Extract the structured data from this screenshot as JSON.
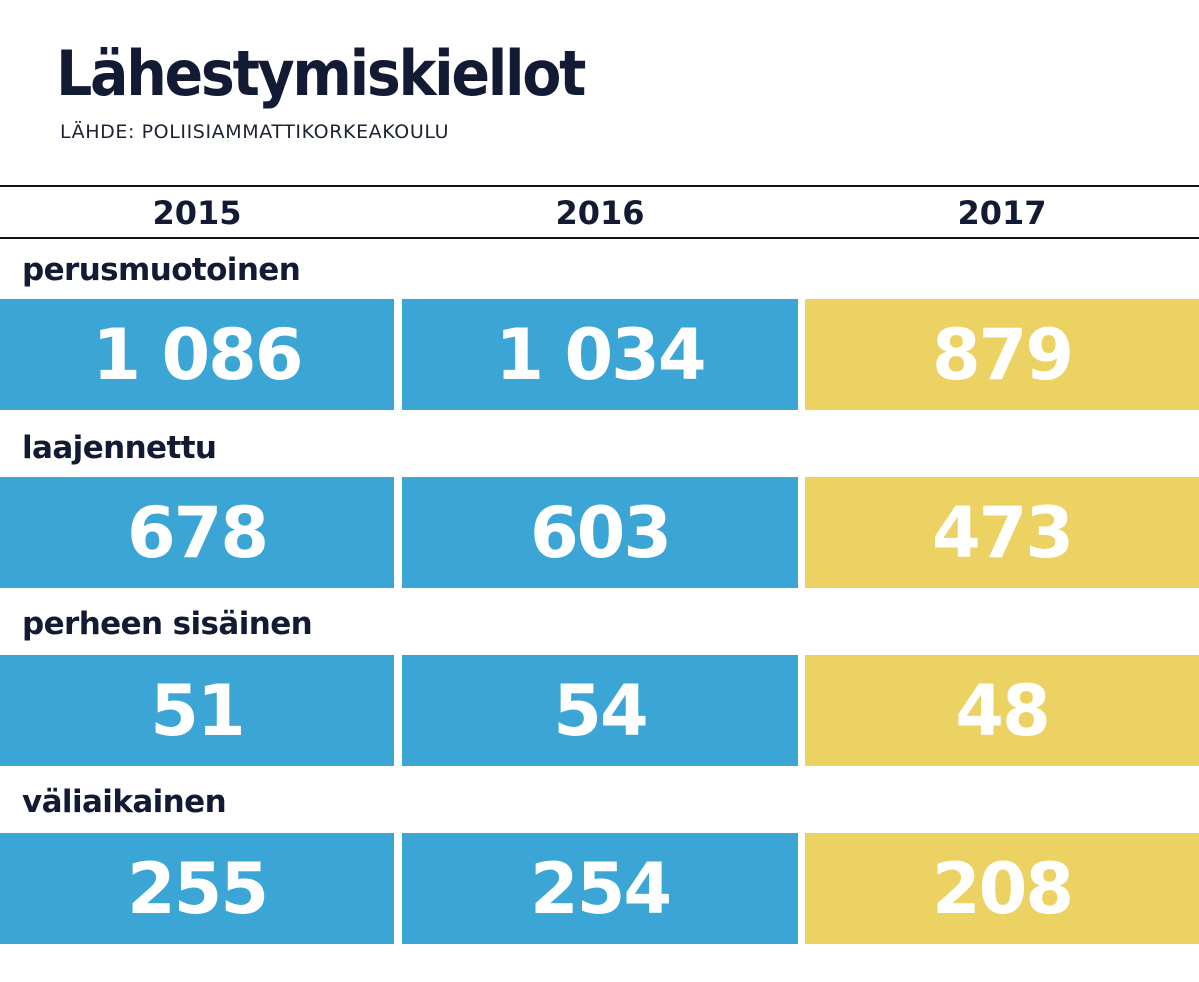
{
  "title": "Lähestymiskiellot",
  "source": "LÄHDE: POLIISIAMMATTIKORKEAKOULU",
  "colors": {
    "text": "#131a33",
    "past_years": "#3ba6d6",
    "latest_year": "#ecd263",
    "value_text": "#ffffff"
  },
  "chart_data": {
    "type": "table",
    "title": "Lähestymiskiellot",
    "source": "LÄHDE: POLIISIAMMATTIKORKEAKOULU",
    "columns": [
      "2015",
      "2016",
      "2017"
    ],
    "rows": [
      {
        "label": "perusmuotoinen",
        "values": [
          1086,
          1034,
          879
        ],
        "display": [
          "1 086",
          "1 034",
          "879"
        ]
      },
      {
        "label": "laajennettu",
        "values": [
          678,
          603,
          473
        ],
        "display": [
          "678",
          "603",
          "473"
        ]
      },
      {
        "label": "perheen sisäinen",
        "values": [
          51,
          54,
          48
        ],
        "display": [
          "51",
          "54",
          "48"
        ]
      },
      {
        "label": "väliaikainen",
        "values": [
          255,
          254,
          208
        ],
        "display": [
          "255",
          "254",
          "208"
        ]
      }
    ]
  }
}
